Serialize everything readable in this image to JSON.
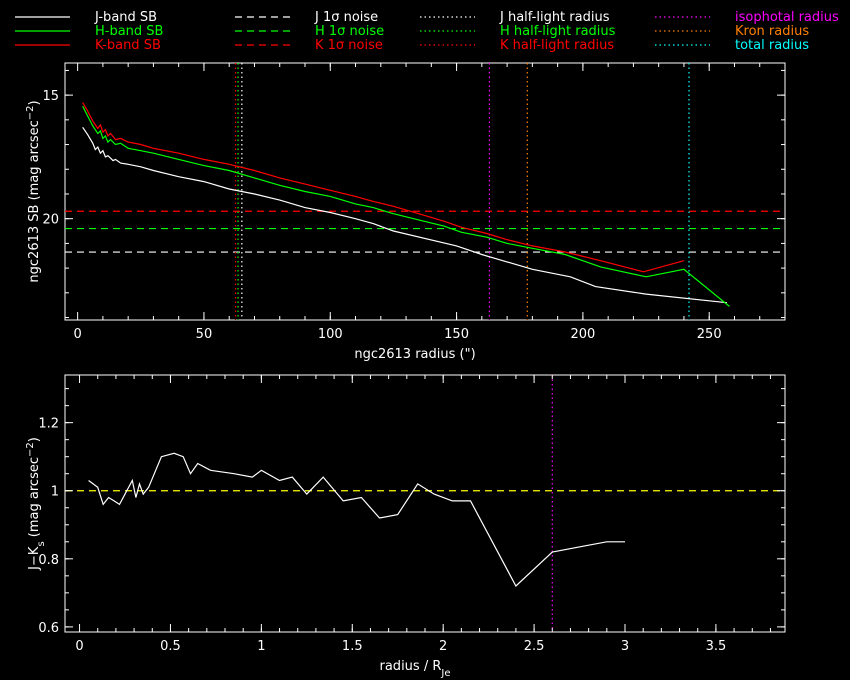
{
  "legend": [
    {
      "label": "J-band SB",
      "color": "#ffffff",
      "dash": "solid"
    },
    {
      "label": "H-band SB",
      "color": "#00ff00",
      "dash": "solid"
    },
    {
      "label": "K-band SB",
      "color": "#ff0000",
      "dash": "solid"
    },
    {
      "label": "J 1σ noise",
      "color": "#ffffff",
      "dash": "dashed"
    },
    {
      "label": "H 1σ noise",
      "color": "#00ff00",
      "dash": "dashed"
    },
    {
      "label": "K 1σ noise",
      "color": "#ff0000",
      "dash": "dashed"
    },
    {
      "label": "J half-light radius",
      "color": "#ffffff",
      "dash": "dotted"
    },
    {
      "label": "H half-light radius",
      "color": "#00ff00",
      "dash": "dotted"
    },
    {
      "label": "K half-light radius",
      "color": "#ff0000",
      "dash": "dotted"
    },
    {
      "label": "isophotal radius",
      "color": "#ff00ff",
      "dash": "dotted"
    },
    {
      "label": "Kron radius",
      "color": "#ff8000",
      "dash": "dotted"
    },
    {
      "label": "total radius",
      "color": "#00ffff",
      "dash": "dotted"
    }
  ],
  "chart_data": [
    {
      "type": "line",
      "xlabel": "ngc2613 radius (\")",
      "ylabel": "ngc2613 SB (mag arcsec⁻²)",
      "xlim": [
        -5,
        280
      ],
      "ylim": [
        24.1,
        13.7
      ],
      "xticks": [
        0,
        50,
        100,
        150,
        200,
        250
      ],
      "yticks": [
        15,
        20
      ],
      "series": [
        {
          "name": "J-band SB",
          "color": "#ffffff",
          "x": [
            2,
            4,
            6,
            7,
            8,
            9,
            10,
            11,
            12,
            13,
            14,
            15,
            17,
            20,
            25,
            30,
            40,
            50,
            60,
            70,
            80,
            90,
            100,
            110,
            117,
            125,
            150,
            160,
            170,
            180,
            195,
            205,
            225,
            257
          ],
          "y": [
            16.3,
            16.6,
            16.95,
            17.2,
            17.1,
            17.35,
            17.25,
            17.5,
            17.45,
            17.55,
            17.65,
            17.6,
            17.75,
            17.8,
            17.9,
            18.05,
            18.3,
            18.5,
            18.8,
            19.0,
            19.25,
            19.55,
            19.75,
            20.0,
            20.2,
            20.5,
            21.1,
            21.45,
            21.75,
            22.05,
            22.35,
            22.75,
            23.05,
            23.4
          ]
        },
        {
          "name": "H-band SB",
          "color": "#00ff00",
          "x": [
            2,
            4,
            6,
            8,
            9,
            10,
            11,
            12,
            13,
            15,
            17,
            20,
            25,
            30,
            40,
            50,
            60,
            70,
            80,
            90,
            100,
            110,
            117,
            125,
            135,
            145,
            152,
            162,
            170,
            180,
            193,
            207,
            225,
            240,
            258
          ],
          "y": [
            15.45,
            15.85,
            16.25,
            16.55,
            16.45,
            16.75,
            16.65,
            16.9,
            16.8,
            17.0,
            16.95,
            17.15,
            17.25,
            17.35,
            17.6,
            17.85,
            18.05,
            18.35,
            18.65,
            18.9,
            19.1,
            19.4,
            19.55,
            19.8,
            20.05,
            20.3,
            20.55,
            20.75,
            21.0,
            21.2,
            21.45,
            21.95,
            22.35,
            22.05,
            23.55
          ]
        },
        {
          "name": "K-band SB",
          "color": "#ff0000",
          "x": [
            2,
            4,
            6,
            8,
            9,
            10,
            11,
            12,
            13,
            15,
            17,
            20,
            25,
            30,
            40,
            50,
            60,
            70,
            80,
            90,
            100,
            110,
            117,
            125,
            135,
            145,
            152,
            162,
            170,
            180,
            193,
            207,
            224,
            240
          ],
          "y": [
            15.3,
            15.65,
            16.05,
            16.35,
            16.2,
            16.5,
            16.4,
            16.65,
            16.55,
            16.8,
            16.75,
            16.9,
            17.0,
            17.15,
            17.35,
            17.6,
            17.8,
            18.05,
            18.35,
            18.6,
            18.85,
            19.1,
            19.3,
            19.5,
            19.8,
            20.1,
            20.35,
            20.6,
            20.85,
            21.1,
            21.35,
            21.7,
            22.15,
            21.7
          ]
        }
      ],
      "noise_levels": [
        {
          "name": "J 1σ noise",
          "color": "#ffffff",
          "value": 21.35
        },
        {
          "name": "H 1σ noise",
          "color": "#00ff00",
          "value": 20.4
        },
        {
          "name": "K 1σ noise",
          "color": "#ff0000",
          "value": 19.7
        }
      ],
      "radii": [
        {
          "name": "J half-light radius",
          "color": "#ffffff",
          "value": 65
        },
        {
          "name": "H half-light radius",
          "color": "#00ff00",
          "value": 63.5
        },
        {
          "name": "K half-light radius",
          "color": "#ff0000",
          "value": 62.5
        },
        {
          "name": "isophotal radius",
          "color": "#ff00ff",
          "value": 163
        },
        {
          "name": "Kron radius",
          "color": "#ff8000",
          "value": 178
        },
        {
          "name": "total radius",
          "color": "#00ffff",
          "value": 242
        }
      ]
    },
    {
      "type": "line",
      "xlabel": "radius / R_Je",
      "ylabel": "J-Ks (mag arcsec⁻²)",
      "xlim": [
        -0.08,
        3.88
      ],
      "ylim": [
        0.585,
        1.34
      ],
      "xticks": [
        0,
        0.5,
        1,
        1.5,
        2,
        2.5,
        3,
        3.5
      ],
      "ytick_labels": [
        "0.6",
        "0.8",
        "1",
        "1.2"
      ],
      "yticks": [
        0.6,
        0.8,
        1.0,
        1.2
      ],
      "reference_line": {
        "value": 1.0,
        "color": "#ffff00"
      },
      "isophotal_marker": {
        "value": 2.6,
        "color": "#ff00ff"
      },
      "series": [
        {
          "name": "J-Ks",
          "color": "#ffffff",
          "x": [
            0.05,
            0.1,
            0.13,
            0.16,
            0.19,
            0.22,
            0.26,
            0.29,
            0.31,
            0.33,
            0.35,
            0.38,
            0.45,
            0.52,
            0.57,
            0.61,
            0.65,
            0.72,
            0.85,
            0.95,
            1.0,
            1.1,
            1.17,
            1.25,
            1.34,
            1.45,
            1.55,
            1.65,
            1.75,
            1.86,
            1.95,
            2.05,
            2.15,
            2.4,
            2.6,
            2.8,
            2.9,
            3.0
          ],
          "y": [
            1.03,
            1.01,
            0.96,
            0.98,
            0.97,
            0.96,
            1.0,
            1.03,
            0.98,
            1.02,
            0.99,
            1.01,
            1.1,
            1.11,
            1.1,
            1.05,
            1.08,
            1.06,
            1.05,
            1.04,
            1.06,
            1.03,
            1.04,
            0.99,
            1.04,
            0.97,
            0.98,
            0.92,
            0.93,
            1.02,
            0.99,
            0.97,
            0.97,
            0.72,
            0.82,
            0.84,
            0.85,
            0.85
          ]
        }
      ]
    }
  ]
}
